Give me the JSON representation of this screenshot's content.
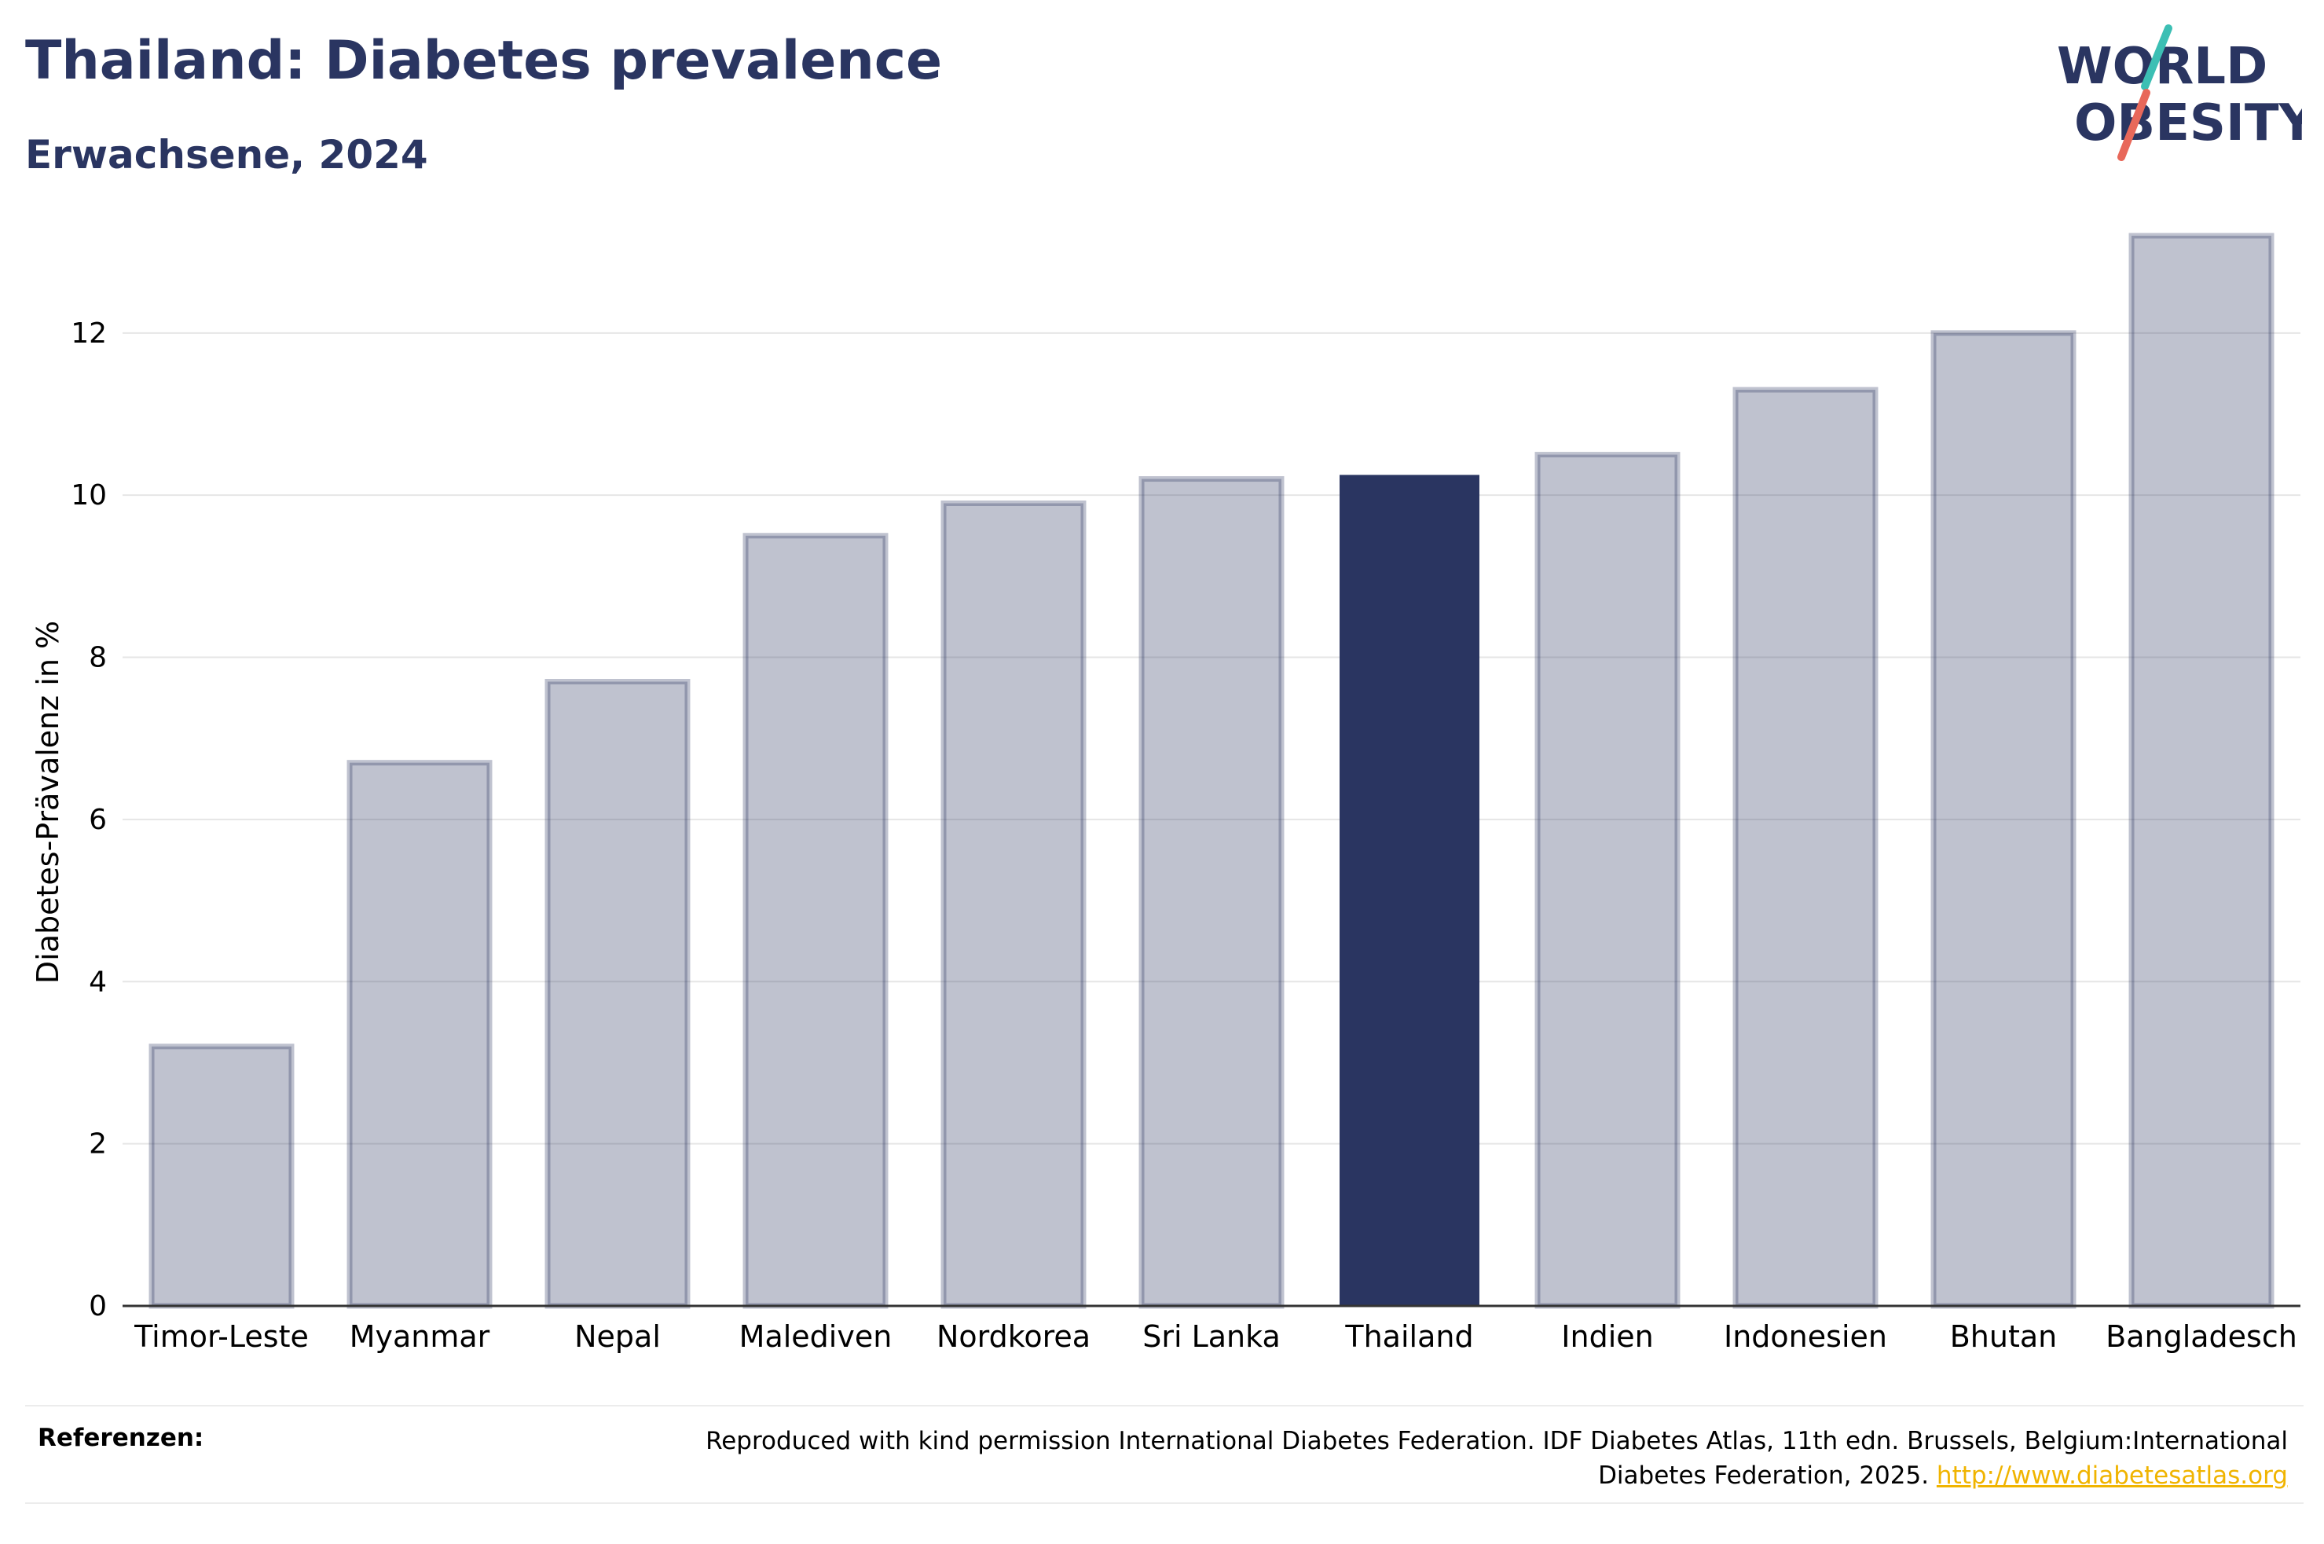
{
  "header": {
    "title": "Thailand: Diabetes prevalence",
    "subtitle": "Erwachsene, 2024"
  },
  "logo": {
    "line1": "WORLD",
    "line2": "OBESITY",
    "accent_colors": [
      "#3cbfb4",
      "#e8685a"
    ]
  },
  "chart_data": {
    "type": "bar",
    "categories": [
      "Timor-Leste",
      "Myanmar",
      "Nepal",
      "Malediven",
      "Nordkorea",
      "Sri Lanka",
      "Thailand",
      "Indien",
      "Indonesien",
      "Bhutan",
      "Bangladesch"
    ],
    "values": [
      3.2,
      6.7,
      7.7,
      9.5,
      9.9,
      10.2,
      10.25,
      10.5,
      11.3,
      12.0,
      13.2
    ],
    "highlight": "Thailand",
    "highlight_color": "#2a3561",
    "bar_color": "#2a3561",
    "xlabel": "",
    "ylabel": "Diabetes-Prävalenz in %",
    "ylim": [
      0,
      13.2
    ],
    "yticks": [
      0,
      2,
      4,
      6,
      8,
      10,
      12
    ],
    "grid": true
  },
  "footer": {
    "label": "Referenzen:",
    "text": "Reproduced with kind permission International Diabetes Federation. IDF Diabetes Atlas, 11th edn. Brussels, Belgium:International Diabetes Federation, 2025.",
    "link": "http://www.diabetesatlas.org"
  }
}
